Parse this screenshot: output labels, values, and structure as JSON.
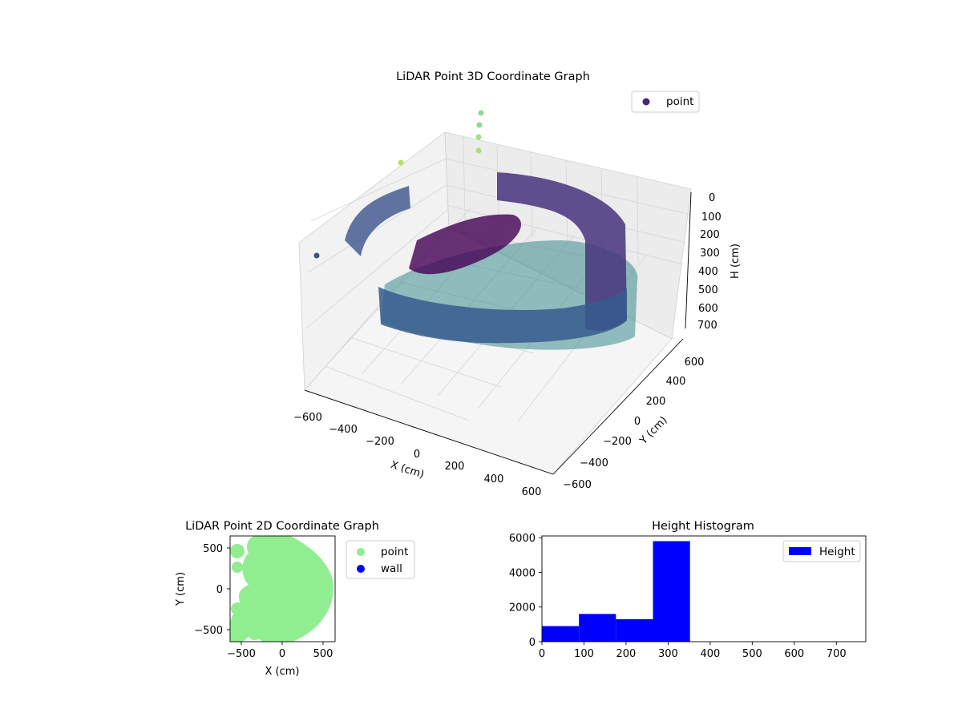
{
  "colors": {
    "point_3d_legend": "#482878",
    "point_2d": "#90ee90",
    "wall_2d": "#0000ff",
    "hist_bar": "#0000ff",
    "pane": "#f2f2f2"
  },
  "chart_data": [
    {
      "type": "scatter",
      "title": "LiDAR Point 3D Coordinate Graph",
      "xlabel": "X (cm)",
      "ylabel": "Y (cm)",
      "zlabel": "H (cm)",
      "xticks": [
        "−600",
        "−400",
        "−200",
        "0",
        "200",
        "400",
        "600"
      ],
      "yticks": [
        "−600",
        "−400",
        "−200",
        "0",
        "200",
        "400",
        "600"
      ],
      "zticks": [
        "0",
        "100",
        "200",
        "300",
        "400",
        "500",
        "600",
        "700"
      ],
      "xlim": [
        -600,
        600
      ],
      "ylim": [
        -600,
        600
      ],
      "zlim": [
        0,
        700
      ],
      "z_inverted": true,
      "grid": true,
      "legend": {
        "location": "upper-right",
        "entries": [
          "point"
        ]
      },
      "colormap": "viridis (color by height)"
    },
    {
      "type": "scatter",
      "title": "LiDAR Point 2D Coordinate Graph",
      "xlabel": "X (cm)",
      "ylabel": "Y (cm)",
      "xticks": [
        "−500",
        "0",
        "500"
      ],
      "yticks": [
        "500",
        "0",
        "−500"
      ],
      "xlim": [
        -620,
        620
      ],
      "ylim": [
        -620,
        620
      ],
      "legend": {
        "location": "outside-right",
        "entries": [
          "point",
          "wall"
        ]
      }
    },
    {
      "type": "bar",
      "title": "Height Histogram",
      "xticks": [
        "0",
        "100",
        "200",
        "300",
        "400",
        "500",
        "600",
        "700"
      ],
      "yticks": [
        "0",
        "2000",
        "4000",
        "6000"
      ],
      "xlim": [
        0,
        770
      ],
      "ylim": [
        0,
        6100
      ],
      "bins": [
        {
          "x0": 0,
          "x1": 88,
          "count": 900
        },
        {
          "x0": 88,
          "x1": 176,
          "count": 1600
        },
        {
          "x0": 176,
          "x1": 264,
          "count": 1300
        },
        {
          "x0": 264,
          "x1": 352,
          "count": 5800
        }
      ],
      "legend": {
        "location": "top-right",
        "entries": [
          "Height"
        ]
      }
    }
  ]
}
